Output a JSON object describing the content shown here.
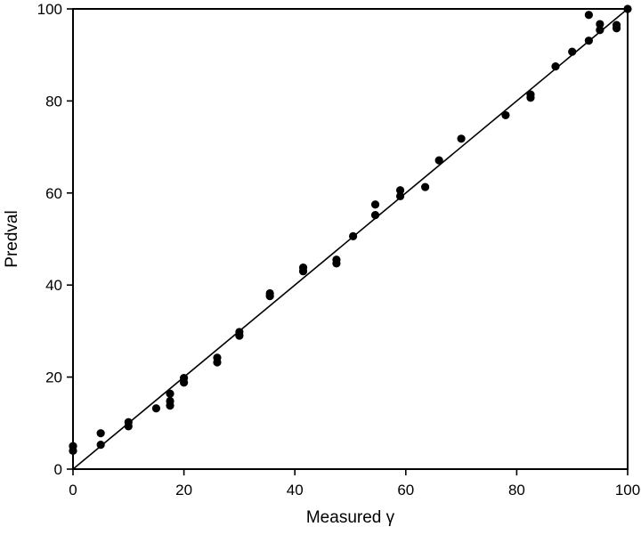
{
  "chart_data": {
    "type": "scatter",
    "title": "",
    "xlabel": "Measured γ",
    "ylabel": "Predval",
    "xlim": [
      0,
      100
    ],
    "ylim": [
      0,
      100
    ],
    "x_ticks": [
      "0",
      "20",
      "40",
      "60",
      "80",
      "100"
    ],
    "y_ticks": [
      "0",
      "20",
      "40",
      "60",
      "80",
      "100"
    ],
    "grid": false,
    "legend": "none",
    "point_color": "#000000",
    "reference_line": {
      "x": [
        0,
        100
      ],
      "y": [
        0,
        100
      ]
    },
    "series": [
      {
        "x": [
          0,
          0,
          5,
          5,
          10,
          10,
          15,
          17.5,
          17.5,
          17.5,
          20,
          20,
          26,
          26,
          30,
          30,
          35.5,
          35.5,
          41.5,
          41.5,
          47.5,
          47.5,
          50.5,
          54.5,
          54.5,
          59,
          59,
          63.5,
          66,
          70,
          78,
          82.5,
          82.5,
          87,
          90,
          93,
          93,
          95,
          95,
          98,
          98,
          100
        ],
        "y": [
          5,
          4,
          7.8,
          5.3,
          10.2,
          9.3,
          13.2,
          16.4,
          14.8,
          13.8,
          19.8,
          18.8,
          24.2,
          23.2,
          29.8,
          29,
          38.2,
          37.6,
          43.8,
          43,
          45.5,
          44.7,
          50.6,
          57.5,
          55.2,
          60.6,
          59.3,
          61.3,
          67.1,
          71.8,
          76.9,
          81.4,
          80.7,
          87.5,
          90.7,
          98.7,
          93.1,
          96.7,
          95.4,
          96.5,
          95.8,
          100
        ]
      }
    ]
  }
}
